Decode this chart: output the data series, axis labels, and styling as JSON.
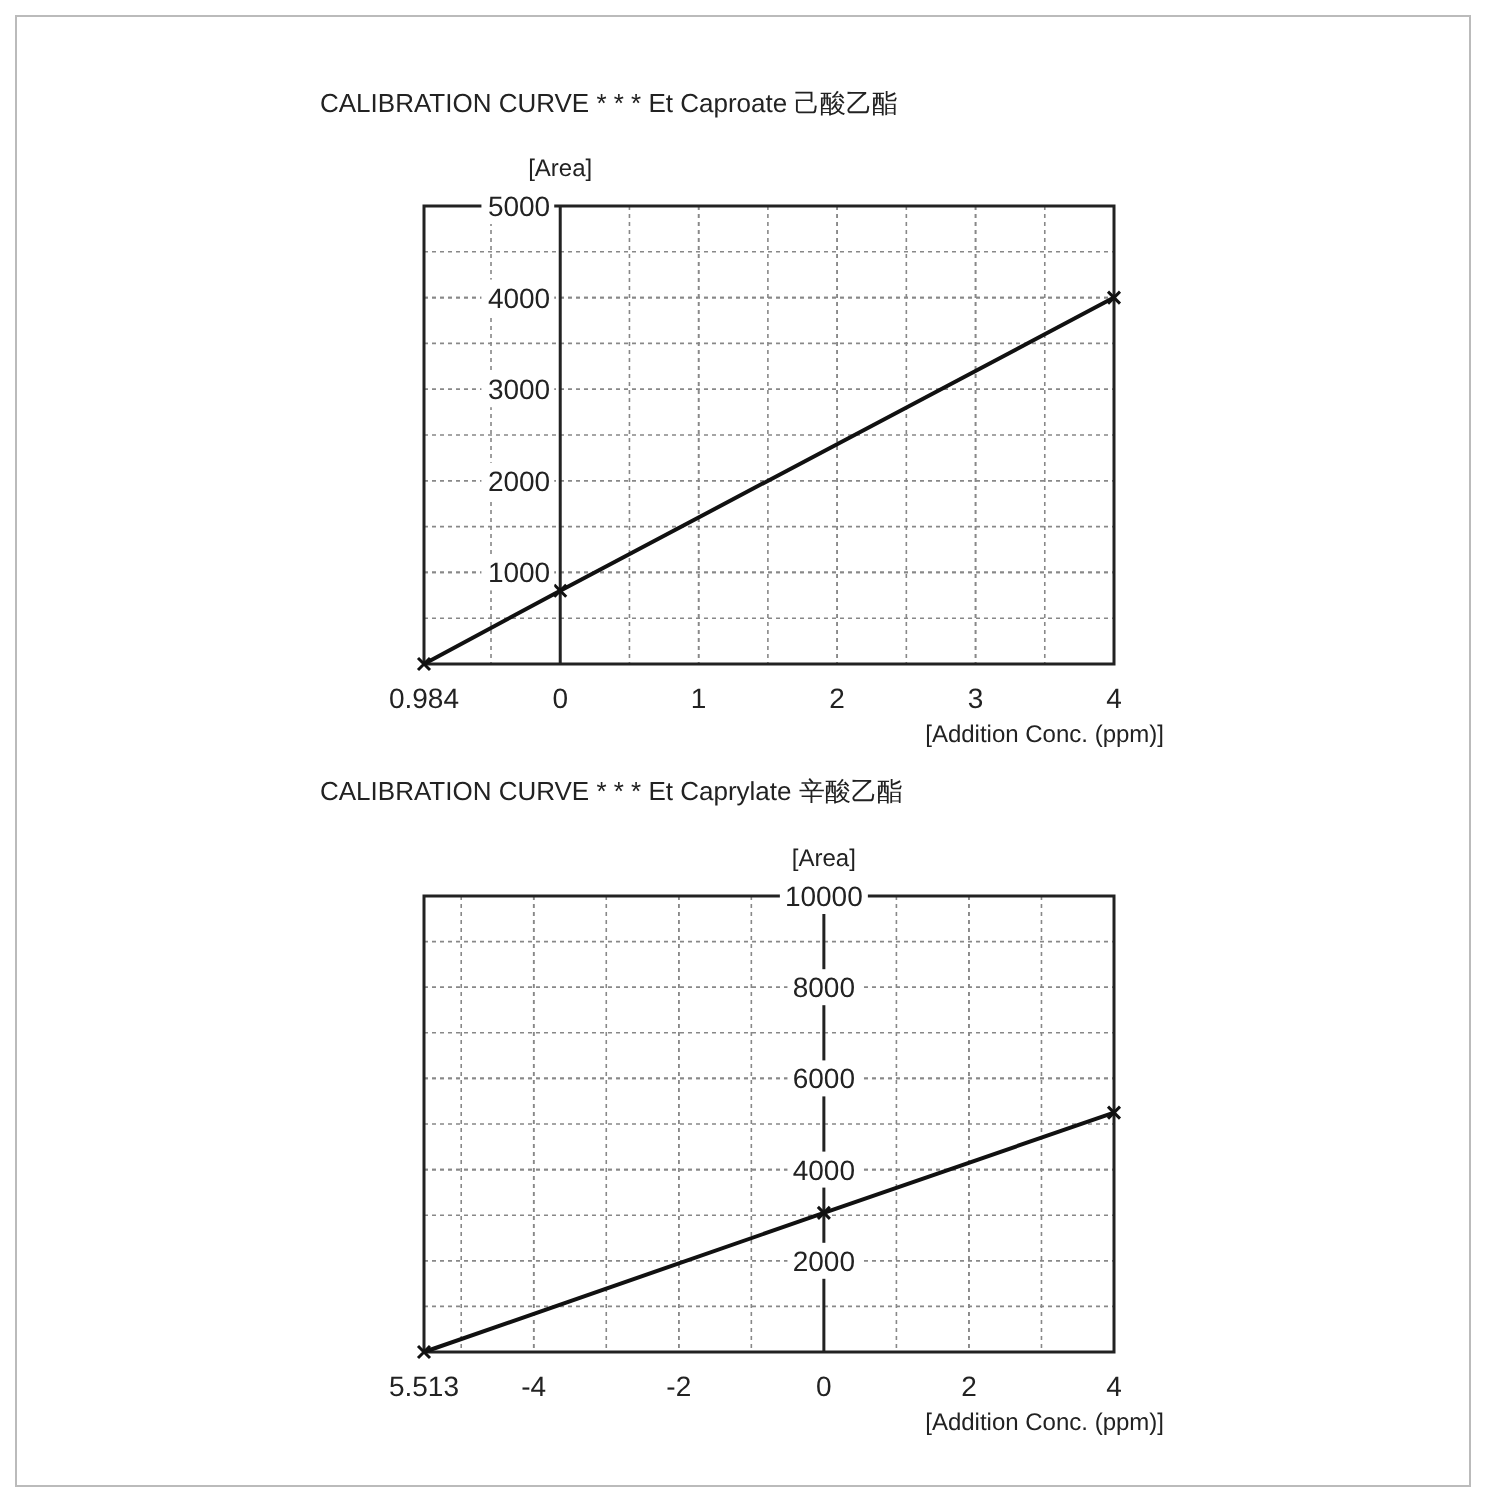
{
  "chart_data": [
    {
      "type": "line",
      "title": "CALIBRATION CURVE * * * Et Caproate 己酸乙酯",
      "ylabel": "[Area]",
      "xlabel": "[Addition Conc. (ppm)]",
      "x": [
        -0.984,
        0,
        4
      ],
      "series": [
        {
          "color": "#111111",
          "values": [
            0,
            800,
            4000
          ]
        }
      ],
      "xlim": [
        -0.984,
        4
      ],
      "ylim": [
        0,
        5000
      ],
      "xticks": [
        {
          "value": -0.984,
          "label": "0.984"
        },
        0,
        1,
        2,
        3,
        4
      ],
      "yticks": [
        1000,
        2000,
        3000,
        4000,
        5000
      ],
      "grid": true,
      "marker": "cross"
    },
    {
      "type": "line",
      "title": "CALIBRATION CURVE * * * Et Caprylate 辛酸乙酯",
      "ylabel": "[Area]",
      "xlabel": "[Addition Conc. (ppm)]",
      "x": [
        -5.513,
        0,
        4
      ],
      "series": [
        {
          "color": "#111111",
          "values": [
            0,
            3050,
            5250
          ]
        }
      ],
      "xlim": [
        -5.513,
        4
      ],
      "ylim": [
        0,
        10000
      ],
      "xticks": [
        {
          "value": -5.513,
          "label": "5.513"
        },
        -4,
        -2,
        0,
        2,
        4
      ],
      "yticks": [
        2000,
        4000,
        6000,
        8000,
        10000
      ],
      "grid": true,
      "marker": "cross"
    }
  ]
}
